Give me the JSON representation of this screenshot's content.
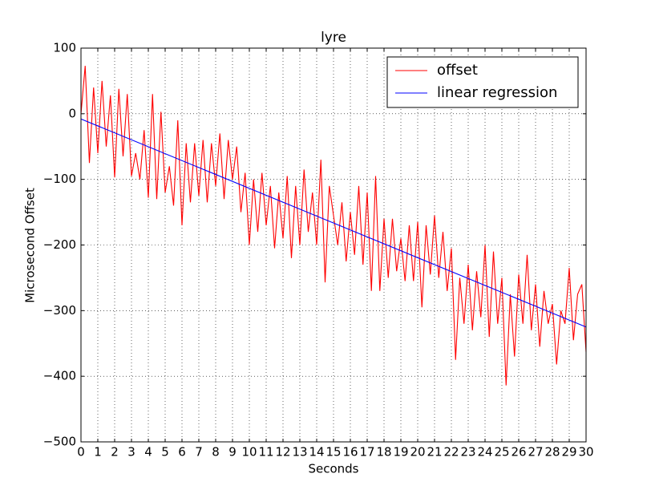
{
  "chart_data": {
    "type": "line",
    "title": "lyre",
    "x_label": "Seconds",
    "y_label": "Microsecond Offset",
    "xlim": [
      0,
      30
    ],
    "ylim": [
      -500,
      100
    ],
    "xticks": [
      0,
      1,
      2,
      3,
      4,
      5,
      6,
      7,
      8,
      9,
      10,
      11,
      12,
      13,
      14,
      15,
      16,
      17,
      18,
      19,
      20,
      21,
      22,
      23,
      24,
      25,
      26,
      27,
      28,
      29,
      30
    ],
    "yticks": [
      {
        "value": -500,
        "label": "−500"
      },
      {
        "value": -400,
        "label": "−400"
      },
      {
        "value": -300,
        "label": "−300"
      },
      {
        "value": -200,
        "label": "−200"
      },
      {
        "value": -100,
        "label": "−100"
      },
      0,
      100
    ],
    "grid": true,
    "legend": "upper right",
    "series": [
      {
        "name": "offset",
        "color": "#ff0000",
        "x": [
          0,
          0.25,
          0.5,
          0.75,
          1,
          1.25,
          1.5,
          1.75,
          2,
          2.25,
          2.5,
          2.75,
          3,
          3.25,
          3.5,
          3.75,
          4,
          4.25,
          4.5,
          4.75,
          5,
          5.25,
          5.5,
          5.75,
          6,
          6.25,
          6.5,
          6.75,
          7,
          7.25,
          7.5,
          7.75,
          8,
          8.25,
          8.5,
          8.75,
          9,
          9.25,
          9.5,
          9.75,
          10,
          10.25,
          10.5,
          10.75,
          11,
          11.25,
          11.5,
          11.75,
          12,
          12.25,
          12.5,
          12.75,
          13,
          13.25,
          13.5,
          13.75,
          14,
          14.25,
          14.5,
          14.75,
          15,
          15.25,
          15.5,
          15.75,
          16,
          16.25,
          16.5,
          16.75,
          17,
          17.25,
          17.5,
          17.75,
          18,
          18.25,
          18.5,
          18.75,
          19,
          19.25,
          19.5,
          19.75,
          20,
          20.25,
          20.5,
          20.75,
          21,
          21.25,
          21.5,
          21.75,
          22,
          22.25,
          22.5,
          22.75,
          23,
          23.25,
          23.5,
          23.75,
          24,
          24.25,
          24.5,
          24.75,
          25,
          25.25,
          25.5,
          25.75,
          26,
          26.25,
          26.5,
          26.75,
          27,
          27.25,
          27.5,
          27.75,
          28,
          28.25,
          28.5,
          28.75,
          29,
          29.25,
          29.5,
          29.75,
          30
        ],
        "values": [
          0,
          73,
          -75,
          40,
          -60,
          50,
          -50,
          28,
          -97,
          38,
          -65,
          30,
          -95,
          -60,
          -100,
          -25,
          -128,
          30,
          -130,
          3,
          -120,
          -80,
          -140,
          -10,
          -170,
          -45,
          -135,
          -45,
          -125,
          -40,
          -135,
          -45,
          -110,
          -30,
          -130,
          -40,
          -100,
          -50,
          -150,
          -90,
          -200,
          -100,
          -180,
          -90,
          -170,
          -110,
          -205,
          -120,
          -190,
          -95,
          -220,
          -110,
          -200,
          -85,
          -180,
          -120,
          -200,
          -70,
          -257,
          -110,
          -155,
          -200,
          -135,
          -225,
          -150,
          -215,
          -110,
          -230,
          -120,
          -270,
          -95,
          -270,
          -160,
          -250,
          -160,
          -240,
          -190,
          -255,
          -170,
          -255,
          -165,
          -295,
          -170,
          -245,
          -155,
          -250,
          -180,
          -270,
          -205,
          -375,
          -250,
          -320,
          -230,
          -330,
          -240,
          -310,
          -200,
          -340,
          -210,
          -320,
          -250,
          -414,
          -275,
          -370,
          -245,
          -320,
          -215,
          -330,
          -260,
          -355,
          -270,
          -320,
          -290,
          -382,
          -300,
          -320,
          -235,
          -345,
          -275,
          -260,
          -363
        ]
      },
      {
        "name": "linear regression",
        "color": "#0000ff",
        "x": [
          0,
          30
        ],
        "values": [
          -8,
          -325
        ]
      }
    ]
  }
}
